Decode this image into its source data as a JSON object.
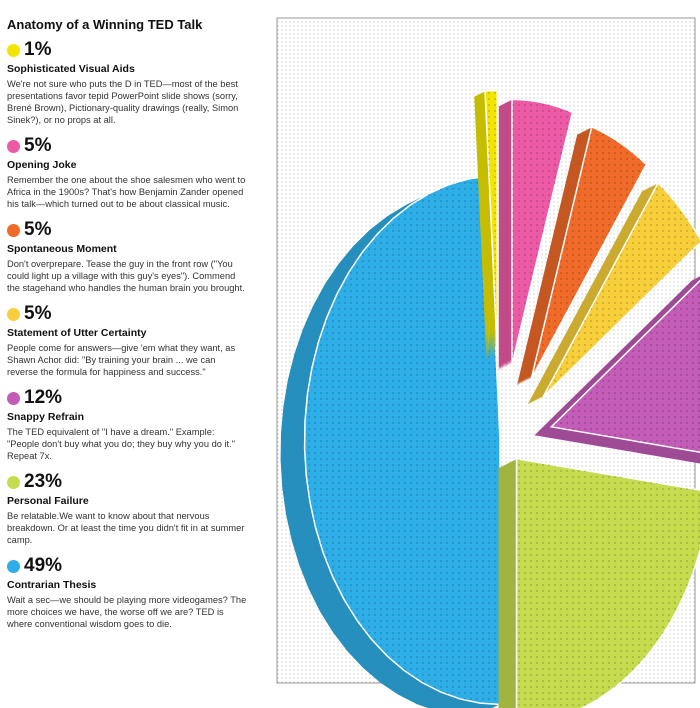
{
  "title": "Anatomy of a Winning TED Talk",
  "items": [
    {
      "pct": "1%",
      "name": "Sophisticated Visual Aids",
      "desc": "We're not sure who puts the D in TED—most of the best presentations favor tepid PowerPoint slide shows (sorry, Brené Brown), Pictionary-quality drawings (really, Simon Sinek?), or no props at all.",
      "color": "#f2e600"
    },
    {
      "pct": "5%",
      "name": "Opening Joke",
      "desc": "Remember the one about the shoe salesmen who went to Africa in the 1900s? That's how Benjamin Zander opened his talk—which turned out to be about classical music.",
      "color": "#ec5aa6"
    },
    {
      "pct": "5%",
      "name": "Spontaneous Moment",
      "desc": "Don't overprepare. Tease the guy in the front row (\"You could light up a village with this guy's eyes\"). Commend the stagehand who handles the human brain you brought.",
      "color": "#f06a2a"
    },
    {
      "pct": "5%",
      "name": "Statement of Utter Certainty",
      "desc": "People come for answers—give 'em what they want, as Shawn Achor did: \"By training your brain ... we can reverse the formula for happiness and success.\"",
      "color": "#f7cf3a"
    },
    {
      "pct": "12%",
      "name": "Snappy Refrain",
      "desc": "The TED equivalent of \"I have a dream.\" Example: \"People don't buy what you do; they buy why you do it.\" Repeat 7x.",
      "color": "#c25cb6"
    },
    {
      "pct": "23%",
      "name": "Personal Failure",
      "desc": "Be relatable.We want to know about that nervous breakdown. Or at least the time you didn't fit in at summer camp.",
      "color": "#c6dc4e"
    },
    {
      "pct": "49%",
      "name": "Contrarian Thesis",
      "desc": "Wait a sec—we should be playing more videogames? The more choices we have, the worse off we are? TED is where conventional wisdom goes to die.",
      "color": "#2eaee6"
    }
  ],
  "chart_data": {
    "type": "pie",
    "style": "3d-exploded",
    "legend": "left",
    "categories": [
      "Sophisticated Visual Aids",
      "Opening Joke",
      "Spontaneous Moment",
      "Statement of Utter Certainty",
      "Snappy Refrain",
      "Personal Failure",
      "Contrarian Thesis"
    ],
    "values": [
      1,
      5,
      5,
      5,
      12,
      23,
      49
    ],
    "colors": [
      "#f2e600",
      "#ec5aa6",
      "#f06a2a",
      "#f7cf3a",
      "#c25cb6",
      "#c6dc4e",
      "#2eaee6"
    ]
  }
}
